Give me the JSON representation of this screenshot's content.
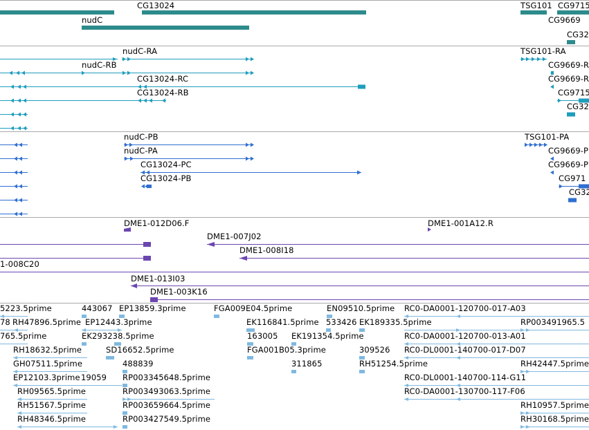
{
  "colors": {
    "gene": "#2e8b8b",
    "transcript": "#1e9dbd",
    "protein": "#2f6fd0",
    "clone": "#6b46b0",
    "est": "#7fb9e0",
    "separator": "#a9a9a9"
  },
  "tracks": {
    "genes": {
      "labels": [
        "CG13024",
        "nudC",
        "TSG101",
        "CG9715",
        "CG9669",
        "CG32"
      ]
    },
    "transcripts": {
      "labels": [
        "nudC-RA",
        "nudC-RB",
        "CG13024-RC",
        "CG13024-RB",
        "TSG101-RA",
        "CG9669-R",
        "CG9669-R",
        "CG9715",
        "CG32"
      ]
    },
    "proteins": {
      "labels": [
        "nudC-PB",
        "nudC-PA",
        "CG13024-PC",
        "CG13024-PB",
        "TSG101-PA",
        "CG9669-P",
        "CG9669-P",
        "CG971",
        "CG32"
      ]
    },
    "clones": {
      "labels": [
        "DME1-012D06.F",
        "DME1-001A12.R",
        "DME1-007J02",
        "DME1-008I18",
        "1-008C20",
        "DME1-013I03",
        "DME1-003K16"
      ]
    },
    "ests": {
      "labels": [
        "5223.5prime",
        "443067",
        "EP13859.3prime",
        "FGA009E04.5prime",
        "EN09510.5prime",
        "RC0-DA0001-120700-017-A03",
        "78",
        "RH47896.5prime",
        "EP12443.3prime",
        "EK116841.5prime",
        "533426",
        "EK189335.5prime",
        "RP003491965.5",
        "765.5prime",
        "EK293238.5prime",
        "163005",
        "EK191354.5prime",
        "RC0-DA0001-120700-013-A01",
        "RH18632.5prime",
        "SD16652.5prime",
        "FGA001B05.3prime",
        "309526",
        "RC0-DL0001-140700-017-D07",
        "GH07511.5prime",
        "488839",
        "311865",
        "RH51254.5prime",
        "RH42447.5prime",
        "EP12103.3prime",
        "19059",
        "RP003345648.5prime",
        "RC0-DL0001-140700-114-G11",
        "RH09565.5prime",
        "RP003493063.5prime",
        "RC0-DA0001-130700-117-F06",
        "RH51567.5prime",
        "RP003659664.5prime",
        "RH10957.5prime",
        "RH48346.5prime",
        "RP003427549.5prime",
        "RH30168.5prime"
      ]
    }
  }
}
